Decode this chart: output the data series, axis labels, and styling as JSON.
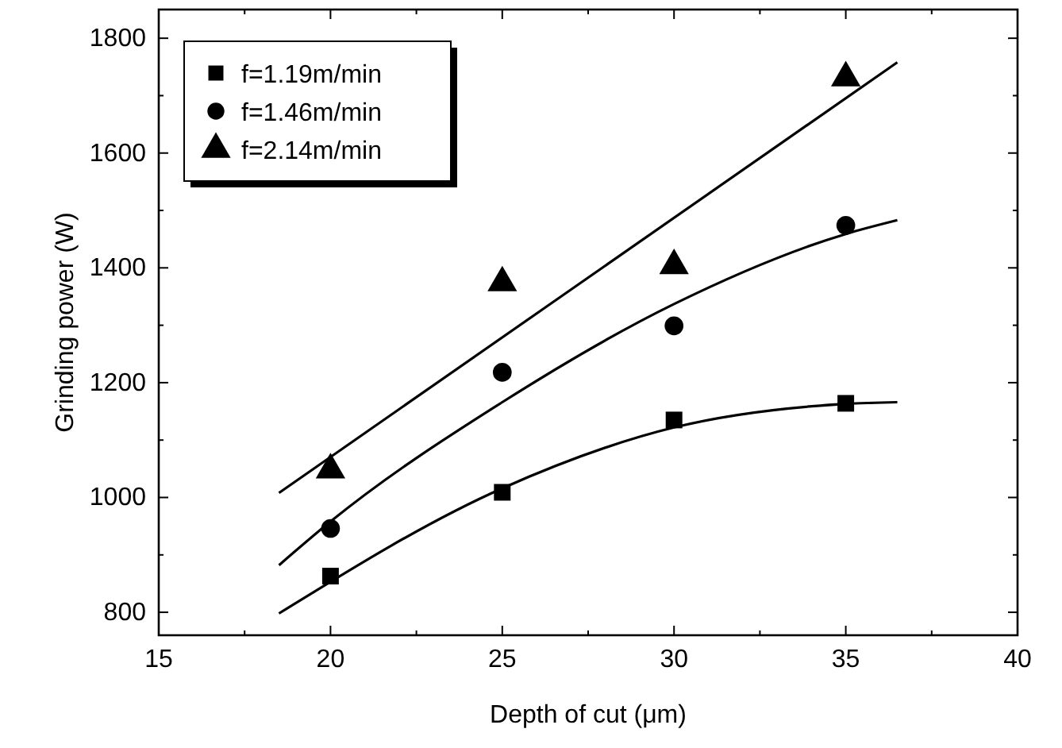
{
  "chart_data": {
    "type": "scatter",
    "xlabel": "Depth of cut (μm)",
    "ylabel": "Grinding power (W)",
    "xlim": [
      15,
      40
    ],
    "xticks": [
      15,
      20,
      25,
      30,
      35,
      40
    ],
    "ylim": [
      760,
      1850
    ],
    "yticks": [
      800,
      1000,
      1200,
      1400,
      1600,
      1800
    ],
    "grid": false,
    "legend": "top left",
    "series": [
      {
        "name": "f=1.19m/min",
        "marker": "square",
        "color": "#000000",
        "x": [
          20,
          25,
          30,
          35
        ],
        "values": [
          863,
          1009,
          1135,
          1164
        ]
      },
      {
        "name": "f=1.46m/min",
        "marker": "circle",
        "color": "#000000",
        "x": [
          20,
          25,
          30,
          35
        ],
        "values": [
          946,
          1218,
          1299,
          1474
        ]
      },
      {
        "name": "f=2.14m/min",
        "marker": "triangle",
        "color": "#000000",
        "x": [
          20,
          25,
          30,
          35
        ],
        "values": [
          1048,
          1374,
          1404,
          1731
        ]
      },
      {
        "type": "line",
        "marker": "none",
        "line_style": "solid",
        "color": "#000000",
        "x": [
          18.5,
          25,
          30,
          35,
          36.5
        ],
        "values": [
          798,
          1016,
          1122,
          1163,
          1166
        ]
      },
      {
        "type": "line",
        "marker": "none",
        "line_style": "solid",
        "color": "#000000",
        "x": [
          18.5,
          20,
          25,
          30,
          35,
          36.5
        ],
        "values": [
          882,
          958,
          1166,
          1337,
          1459,
          1483
        ]
      },
      {
        "type": "line",
        "marker": "none",
        "line_style": "solid",
        "color": "#000000",
        "x": [
          18.5,
          36.5
        ],
        "values": [
          1008,
          1758
        ]
      }
    ]
  }
}
